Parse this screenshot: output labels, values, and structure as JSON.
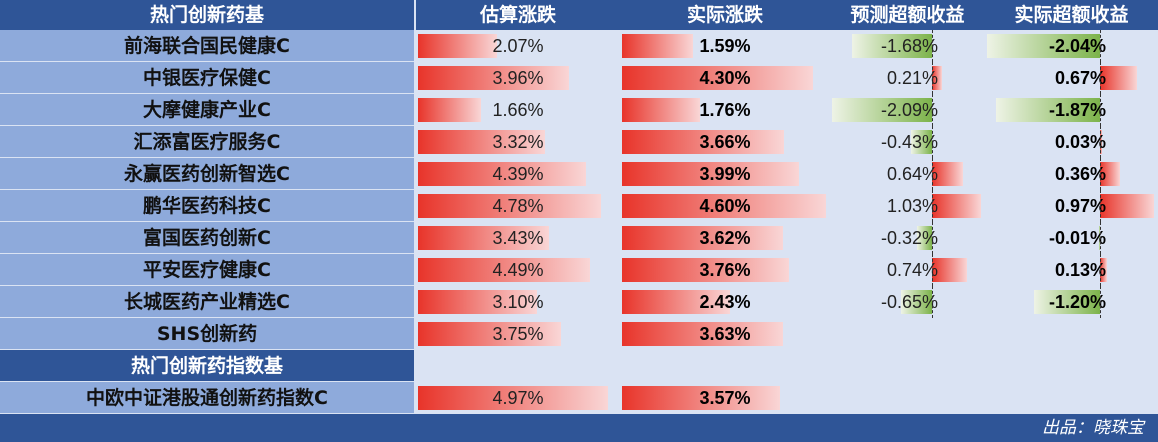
{
  "table": {
    "header": [
      "热门创新药基",
      "估算涨跌",
      "实际涨跌",
      "预测超额收益",
      "实际超额收益"
    ],
    "groups": [
      {
        "rows": [
          [
            "前海联合国民健康C",
            "2.07%",
            "1.59%",
            "-1.68%",
            "-2.04%"
          ],
          [
            "中银医疗保健C",
            "3.96%",
            "4.30%",
            "0.21%",
            "0.67%"
          ],
          [
            "大摩健康产业C",
            "1.66%",
            "1.76%",
            "-2.09%",
            "-1.87%"
          ],
          [
            "汇添富医疗服务C",
            "3.32%",
            "3.66%",
            "-0.43%",
            "0.03%"
          ],
          [
            "永赢医药创新智选C",
            "4.39%",
            "3.99%",
            "0.64%",
            "0.36%"
          ],
          [
            "鹏华医药科技C",
            "4.78%",
            "4.60%",
            "1.03%",
            "0.97%"
          ],
          [
            "富国医药创新C",
            "3.43%",
            "3.62%",
            "-0.32%",
            "-0.01%"
          ],
          [
            "平安医疗健康C",
            "4.49%",
            "3.76%",
            "0.74%",
            "0.13%"
          ],
          [
            "长城医药产业精选C",
            "3.10%",
            "2.43%",
            "-0.65%",
            "-1.20%"
          ],
          [
            "SHS创新药",
            "3.75%",
            "3.63%"
          ]
        ]
      },
      {
        "title": "热门创新药指数基",
        "rows": [
          [
            "中欧中证港股通创新药指数C",
            "4.97%",
            "3.57%"
          ]
        ]
      }
    ]
  },
  "footer": "出品：晓珠宝"
}
